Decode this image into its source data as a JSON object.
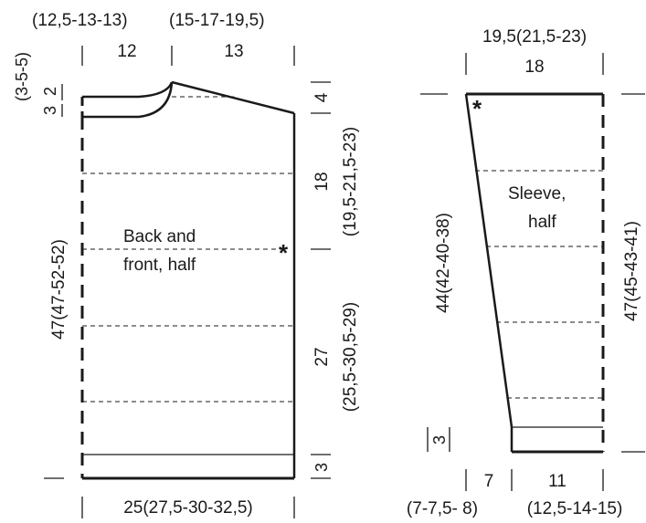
{
  "body_piece": {
    "label_line1": "Back and",
    "label_line2": "front, half",
    "top_left_width_sizes": "(12,5-13-13)",
    "top_left_width": "12",
    "top_right_width_sizes": "(15-17-19,5)",
    "top_right_width": "13",
    "neck_depth_sizes": "(3-5-5)",
    "neck_depth": "3",
    "neck_small": "2",
    "shoulder_slope": "4",
    "armhole_depth": "18",
    "armhole_depth_sizes": "(19,5-21,5-23)",
    "lower_length": "27",
    "lower_length_sizes": "(25,5-30,5-29)",
    "rib_height": "3",
    "total_length": "47(47-52-52)",
    "bottom_width": "25(27,5-30-32,5)",
    "marker": "*"
  },
  "sleeve_piece": {
    "label_line1": "Sleeve,",
    "label_line2": "half",
    "top_width_sizes": "19,5(21,5-23)",
    "top_width": "18",
    "left_length": "44(42-40-38)",
    "right_length": "47(45-43-41)",
    "rib_height": "3",
    "bottom_left_width": "7",
    "bottom_left_width_sizes": "(7-7,5- 8)",
    "bottom_right_width": "11",
    "bottom_right_width_sizes": "(12,5-14-15)",
    "marker": "*"
  }
}
